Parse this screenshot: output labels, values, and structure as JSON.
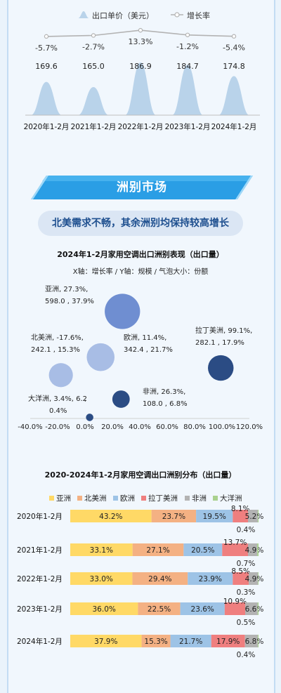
{
  "top_chart": {
    "legend": {
      "price_label": "出口单价（美元）",
      "growth_label": "增长率"
    },
    "chart_data": {
      "type": "area",
      "categories": [
        "2020年1-2月",
        "2021年1-2月",
        "2022年1-2月",
        "2023年1-2月",
        "2024年1-2月"
      ],
      "series": [
        {
          "name": "出口单价（美元）",
          "values": [
            169.6,
            165.0,
            186.9,
            184.7,
            174.8
          ],
          "labels": [
            "169.6",
            "165.0",
            "186.9",
            "184.7",
            "174.8"
          ]
        },
        {
          "name": "增长率",
          "values": [
            -5.7,
            -2.7,
            13.3,
            -1.2,
            -5.4
          ],
          "labels": [
            "-5.7%",
            "-2.7%",
            "13.3%",
            "-1.2%",
            "-5.4%"
          ]
        }
      ],
      "colors": {
        "price": "#b9d3ea",
        "growth": "#b3b3b3"
      }
    }
  },
  "section": {
    "banner": "洲别市场",
    "subtitle": "北美需求不畅，其余洲别均保持较高增长"
  },
  "bubble_chart": {
    "title": "2024年1-2月家用空调出口洲别表现（出口量）",
    "subtitle": "X轴：增长率 / Y轴：规模 / 气泡大小：份额",
    "chart_data": {
      "type": "scatter",
      "xlim": [
        -40,
        120
      ],
      "x_ticks": [
        "-40.0%",
        "-20.0%",
        "0.0%",
        "20.0%",
        "40.0%",
        "60.0%",
        "80.0%",
        "100.0%",
        "120.0%"
      ],
      "points": [
        {
          "name": "亚洲",
          "x": 27.3,
          "y": 598.0,
          "share": 37.9,
          "label": [
            "亚洲, 27.3%,",
            "598.0 , 37.9%"
          ],
          "color": "#6f8ed1"
        },
        {
          "name": "北美洲",
          "x": -17.6,
          "y": 242.1,
          "share": 15.3,
          "label": [
            "北美洲, -17.6%,",
            "242.1 , 15.3%"
          ],
          "color": "#a8bde5"
        },
        {
          "name": "欧洲",
          "x": 11.4,
          "y": 342.4,
          "share": 21.7,
          "label": [
            "欧洲, 11.4%,",
            "342.4 , 21.7%"
          ],
          "color": "#a8bde5"
        },
        {
          "name": "拉丁美洲",
          "x": 99.1,
          "y": 282.1,
          "share": 17.9,
          "label": [
            "拉丁美洲, 99.1%,",
            "282.1 , 17.9%"
          ],
          "color": "#2b4c84"
        },
        {
          "name": "非洲",
          "x": 26.3,
          "y": 108.0,
          "share": 6.8,
          "label": [
            "非洲, 26.3%,",
            "108.0 , 6.8%"
          ],
          "color": "#2b4c84"
        },
        {
          "name": "大洋洲",
          "x": 3.4,
          "y": 6.2,
          "share": 0.4,
          "label": [
            "大洋洲, 3.4%, 6.2",
            ",",
            "0.4%"
          ],
          "color": "#2b4c84"
        }
      ]
    }
  },
  "stacked_chart": {
    "title": "2020-2024年1-2月家用空调出口洲别分布（出口量）",
    "chart_data": {
      "type": "bar",
      "stacked": true,
      "orientation": "horizontal",
      "categories": [
        "2020年1-2月",
        "2021年1-2月",
        "2022年1-2月",
        "2023年1-2月",
        "2024年1-2月"
      ],
      "series": [
        {
          "name": "亚洲",
          "color": "#ffd966",
          "values": [
            43.2,
            33.1,
            33.0,
            36.0,
            37.9
          ]
        },
        {
          "name": "北美洲",
          "color": "#f4b183",
          "values": [
            23.7,
            27.1,
            29.4,
            22.5,
            15.3
          ]
        },
        {
          "name": "欧洲",
          "color": "#9dc3e6",
          "values": [
            19.5,
            20.5,
            23.9,
            23.6,
            21.7
          ]
        },
        {
          "name": "拉丁美洲",
          "color": "#ef7f7f",
          "values": [
            8.1,
            13.7,
            8.5,
            10.9,
            17.9
          ]
        },
        {
          "name": "非洲",
          "color": "#b3b3b3",
          "values": [
            5.2,
            4.9,
            4.9,
            6.6,
            6.8
          ]
        },
        {
          "name": "大洋洲",
          "color": "#a9d18e",
          "values": [
            0.4,
            0.7,
            0.3,
            0.5,
            0.4
          ]
        }
      ]
    }
  }
}
